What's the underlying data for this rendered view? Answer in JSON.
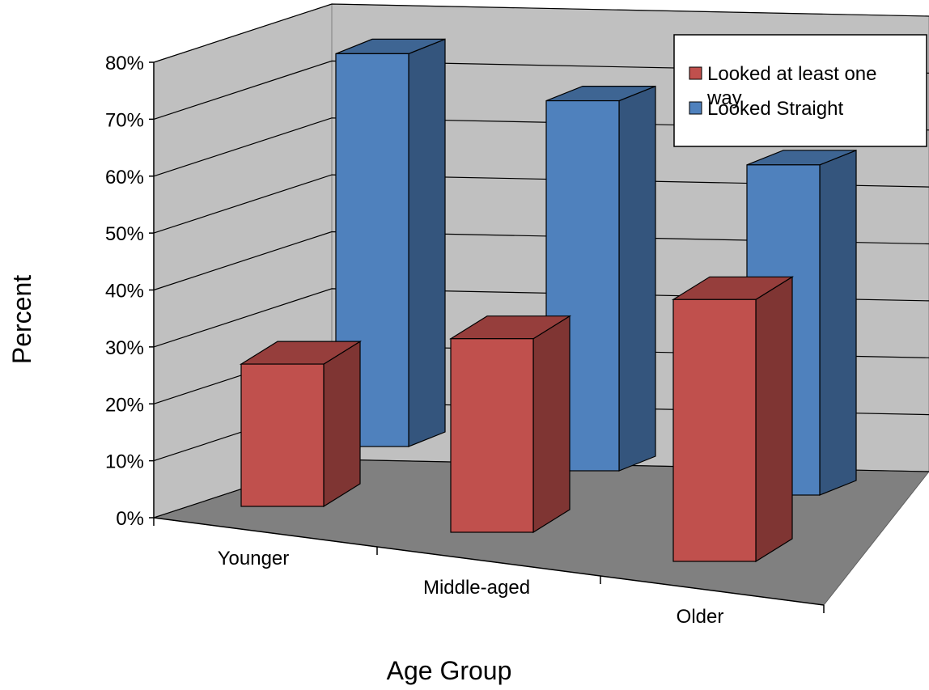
{
  "chart_data": {
    "type": "bar",
    "title": "",
    "xlabel": "Age Group",
    "ylabel": "Percent",
    "categories": [
      "Younger",
      "Middle-aged",
      "Older"
    ],
    "series": [
      {
        "name": "Looked at least one way",
        "values": [
          25,
          34,
          46
        ],
        "color": "#c0504d"
      },
      {
        "name": "Looked Straight",
        "values": [
          69,
          65,
          58
        ],
        "color": "#4f81bd"
      }
    ],
    "ylim": [
      0,
      80
    ],
    "yticks": [
      "0%",
      "10%",
      "20%",
      "30%",
      "40%",
      "50%",
      "60%",
      "70%",
      "80%"
    ],
    "grid": true,
    "legend_position": "top-right",
    "style": "3d-clustered-column"
  }
}
